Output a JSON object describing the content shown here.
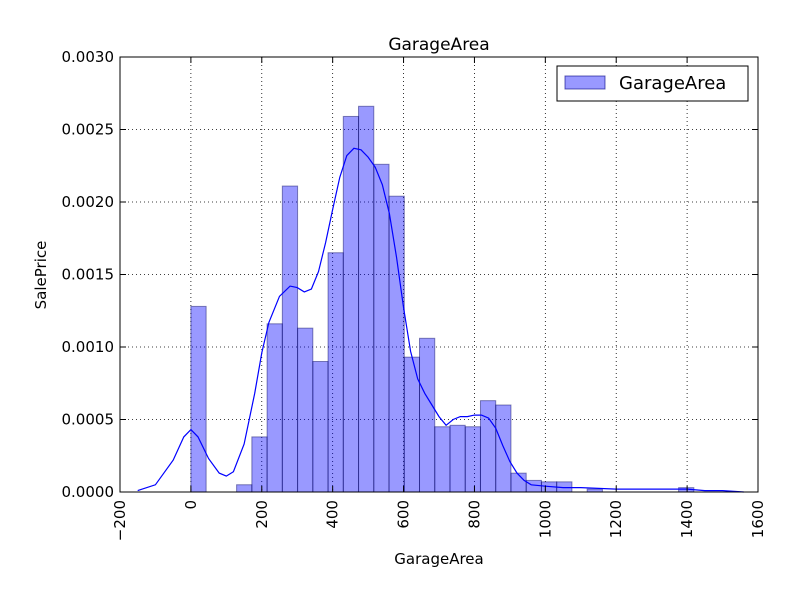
{
  "chart_data": {
    "type": "bar",
    "title": "GarageArea",
    "xlabel": "GarageArea",
    "ylabel": "SalePrice",
    "xlim": [
      -200,
      1600
    ],
    "ylim": [
      0,
      0.003
    ],
    "grid": true,
    "legend": {
      "position": "upper-right",
      "entries": [
        "GarageArea"
      ]
    },
    "x_ticks": [
      "−200",
      "0",
      "200",
      "400",
      "600",
      "800",
      "1000",
      "1200",
      "1400",
      "1600"
    ],
    "y_ticks": [
      "0.0000",
      "0.0005",
      "0.0010",
      "0.0015",
      "0.0020",
      "0.0025",
      "0.0030"
    ],
    "histogram": {
      "name": "GarageArea",
      "color": "#0000ff",
      "bin_width": 43,
      "bins": [
        {
          "x0": 0,
          "density": 0.00128
        },
        {
          "x0": 129,
          "density": 5e-05
        },
        {
          "x0": 172,
          "density": 0.00038
        },
        {
          "x0": 215,
          "density": 0.00116
        },
        {
          "x0": 258,
          "density": 0.00211
        },
        {
          "x0": 301,
          "density": 0.00113
        },
        {
          "x0": 344,
          "density": 0.0009
        },
        {
          "x0": 387,
          "density": 0.00165
        },
        {
          "x0": 430,
          "density": 0.00259
        },
        {
          "x0": 473,
          "density": 0.00266
        },
        {
          "x0": 516,
          "density": 0.00226
        },
        {
          "x0": 559,
          "density": 0.00204
        },
        {
          "x0": 602,
          "density": 0.00093
        },
        {
          "x0": 645,
          "density": 0.00106
        },
        {
          "x0": 688,
          "density": 0.00045
        },
        {
          "x0": 731,
          "density": 0.00046
        },
        {
          "x0": 774,
          "density": 0.00045
        },
        {
          "x0": 817,
          "density": 0.00063
        },
        {
          "x0": 860,
          "density": 0.0006
        },
        {
          "x0": 903,
          "density": 0.00013
        },
        {
          "x0": 946,
          "density": 8e-05
        },
        {
          "x0": 989,
          "density": 7e-05
        },
        {
          "x0": 1032,
          "density": 7e-05
        },
        {
          "x0": 1118,
          "density": 2e-05
        },
        {
          "x0": 1376,
          "density": 3e-05
        }
      ]
    },
    "kde": {
      "color": "#0000ff",
      "x": [
        -150,
        -100,
        -50,
        -20,
        0,
        20,
        50,
        80,
        100,
        120,
        150,
        180,
        200,
        220,
        250,
        280,
        300,
        320,
        340,
        360,
        380,
        400,
        420,
        440,
        460,
        480,
        500,
        520,
        540,
        560,
        580,
        600,
        620,
        640,
        660,
        680,
        700,
        720,
        740,
        760,
        780,
        800,
        820,
        840,
        860,
        880,
        900,
        920,
        940,
        960,
        1000,
        1050,
        1100,
        1200,
        1300,
        1400,
        1450,
        1500,
        1560
      ],
      "y": [
        1e-05,
        5e-05,
        0.00022,
        0.00038,
        0.00043,
        0.00038,
        0.00023,
        0.00013,
        0.00011,
        0.00014,
        0.00033,
        0.00068,
        0.00096,
        0.00117,
        0.00135,
        0.00142,
        0.00141,
        0.00138,
        0.0014,
        0.00152,
        0.00172,
        0.00195,
        0.00217,
        0.00232,
        0.00237,
        0.00236,
        0.00231,
        0.00224,
        0.00212,
        0.00192,
        0.00162,
        0.00127,
        0.00097,
        0.00078,
        0.00068,
        0.0006,
        0.00052,
        0.00046,
        0.0005,
        0.00052,
        0.00052,
        0.00053,
        0.00053,
        0.00051,
        0.00044,
        0.00032,
        0.00021,
        0.00013,
        8e-05,
        5e-05,
        4e-05,
        3e-05,
        3e-05,
        2e-05,
        2e-05,
        2e-05,
        1e-05,
        1e-05,
        0.0
      ]
    }
  }
}
